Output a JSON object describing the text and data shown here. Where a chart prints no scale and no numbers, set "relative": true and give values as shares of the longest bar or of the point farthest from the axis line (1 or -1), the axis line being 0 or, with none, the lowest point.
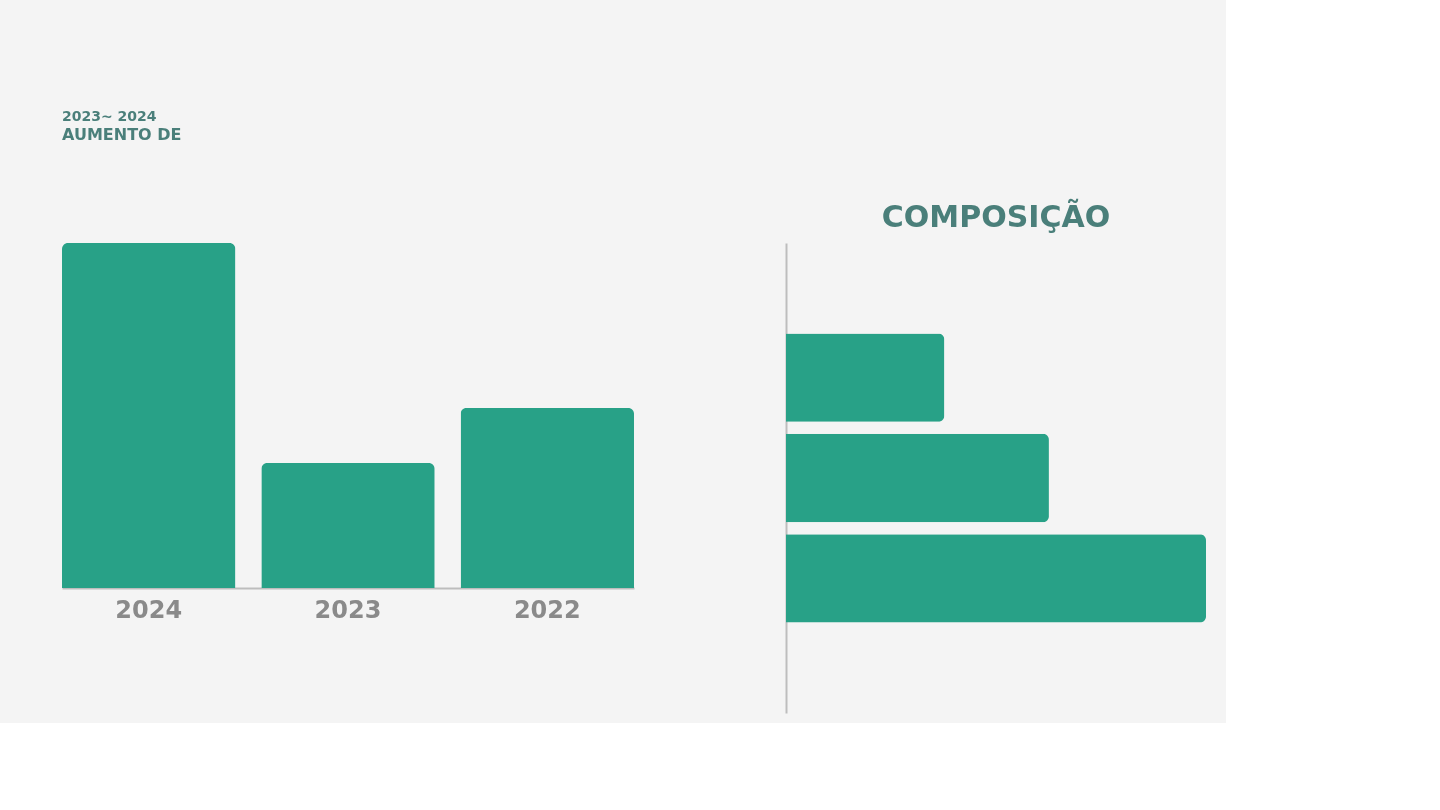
{
  "chart_data": [
    {
      "type": "bar",
      "title": "2023~ 2024",
      "subtitle": "AUMENTO DE",
      "categories": [
        "2024",
        "2023",
        "2022"
      ],
      "values": [
        1,
        0.362,
        0.522
      ],
      "color": "#28a187",
      "relative": true
    },
    {
      "type": "bar",
      "title": "COMPOSIÇÃO",
      "orientation": "horizontal",
      "categories": [
        null,
        null,
        null
      ],
      "values": [
        0.377,
        0.626,
        1
      ],
      "color": "#28a187",
      "relative": true
    }
  ]
}
